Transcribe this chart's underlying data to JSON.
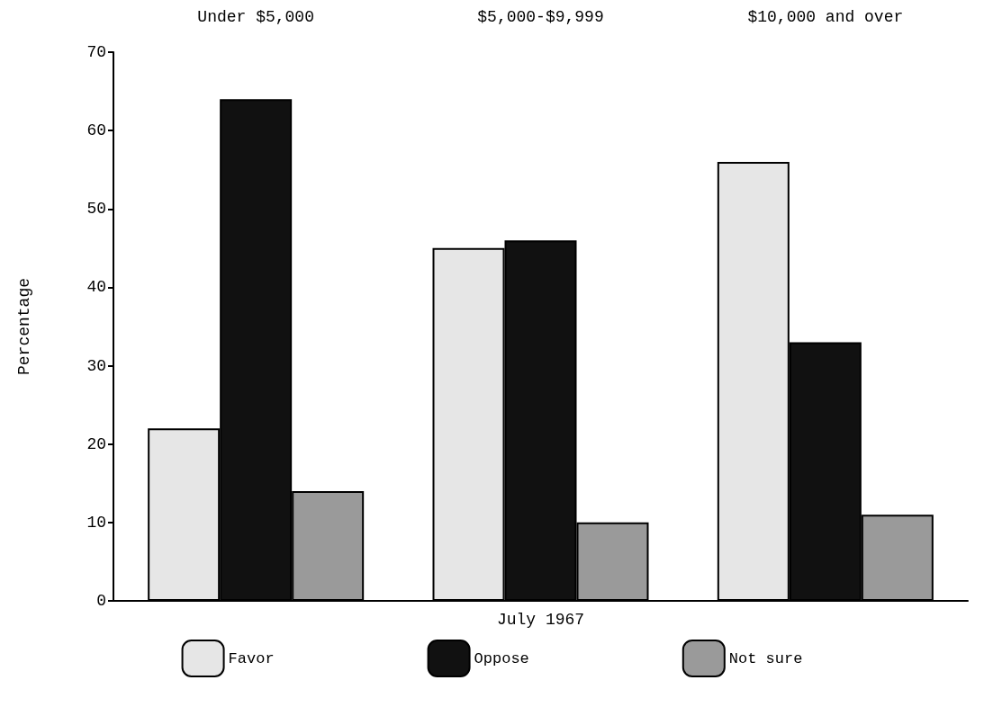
{
  "chart_data": {
    "type": "bar",
    "categories": [
      "Under $5,000",
      "$5,000-$9,999",
      "$10,000 and over"
    ],
    "xlabel": "July 1967",
    "ylabel": "Percentage",
    "ylim": [
      0,
      70
    ],
    "yticks": [
      0,
      10,
      20,
      30,
      40,
      50,
      60,
      70
    ],
    "grid": false,
    "legend": "bottom",
    "series": [
      {
        "name": "Favor",
        "color": "#e6e6e6",
        "values": [
          22,
          45,
          56
        ]
      },
      {
        "name": "Oppose",
        "color": "#111111",
        "values": [
          64,
          46,
          33
        ]
      },
      {
        "name": "Not sure",
        "color": "#9a9a9a",
        "values": [
          14,
          10,
          11
        ]
      }
    ]
  }
}
